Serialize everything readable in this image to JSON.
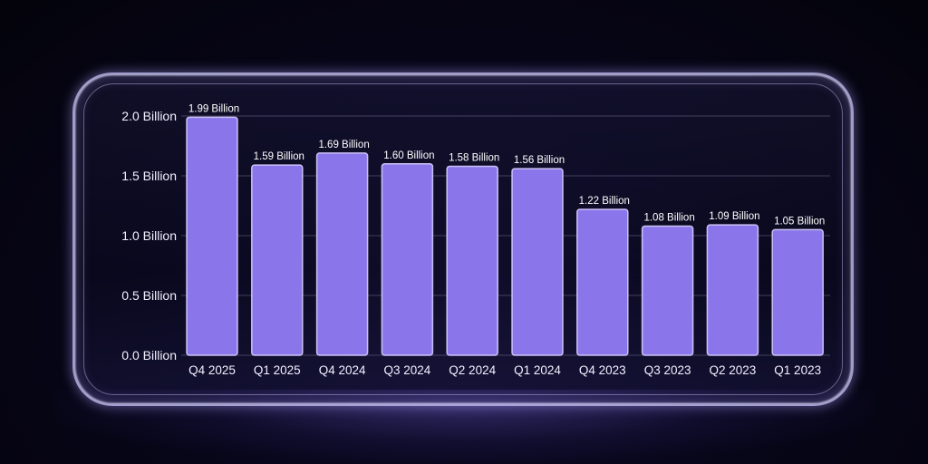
{
  "chart_data": {
    "type": "bar",
    "categories": [
      "Q4 2025",
      "Q1 2025",
      "Q4 2024",
      "Q3 2024",
      "Q2 2024",
      "Q1 2024",
      "Q4 2023",
      "Q3 2023",
      "Q2 2023",
      "Q1 2023"
    ],
    "values": [
      1.99,
      1.59,
      1.69,
      1.6,
      1.58,
      1.56,
      1.22,
      1.08,
      1.09,
      1.05
    ],
    "data_labels": [
      "1.99 Billion",
      "1.59 Billion",
      "1.69 Billion",
      "1.60 Billion",
      "1.58 Billion",
      "1.56 Billion",
      "1.22 Billion",
      "1.08 Billion",
      "1.09 Billion",
      "1.05 Billion"
    ],
    "yticks": [
      0.0,
      0.5,
      1.0,
      1.5,
      2.0
    ],
    "ytick_labels": [
      "0.0 Billion",
      "0.5 Billion",
      "1.0 Billion",
      "1.5 Billion",
      "2.0 Billion"
    ],
    "ylim": [
      0,
      2.0
    ],
    "title": "",
    "xlabel": "",
    "ylabel": "",
    "grid": true,
    "legend": "none",
    "colors": {
      "bar": "#8a76ea",
      "bar_edge": "#d7cdff",
      "text": "#f2f0ff",
      "background": "#07061a"
    }
  }
}
